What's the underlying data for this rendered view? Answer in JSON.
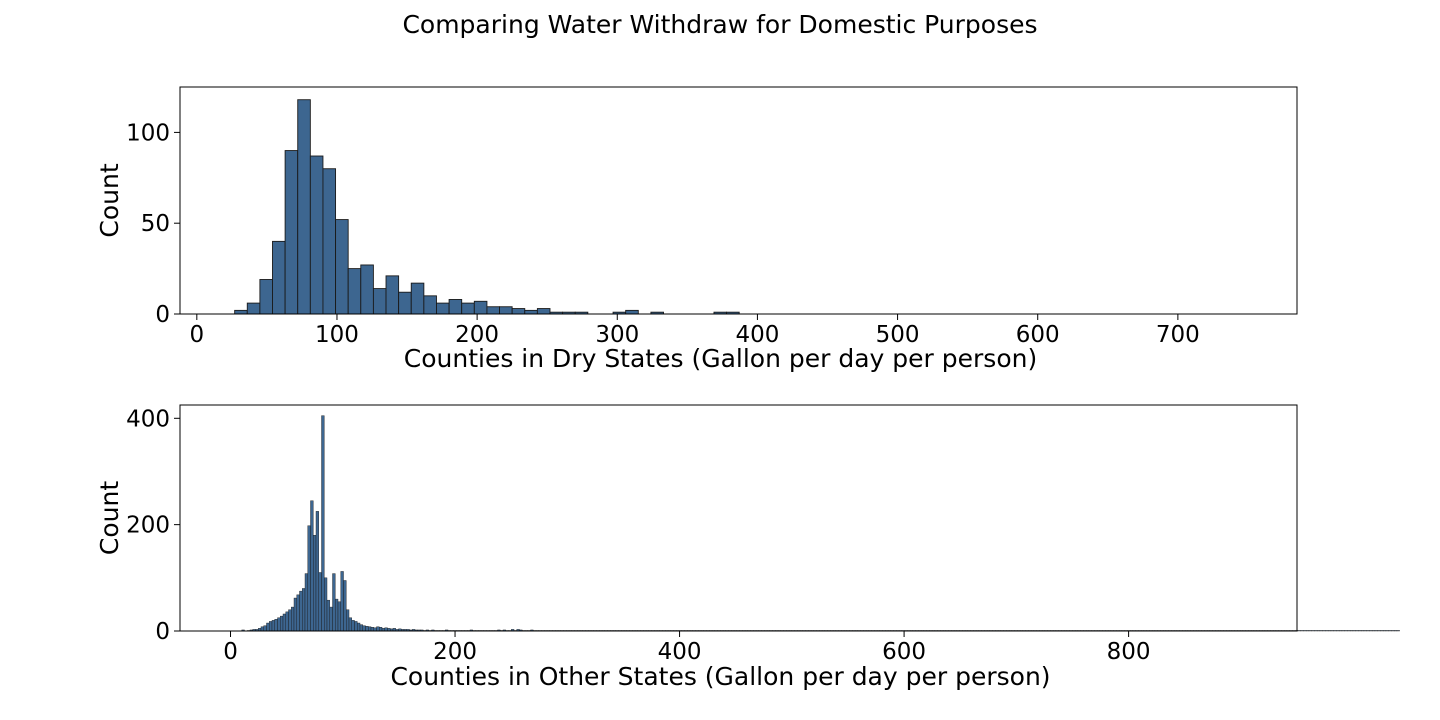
{
  "figure": {
    "title": "Comparing Water Withdraw for Domestic Purposes",
    "bar_color": "#3d6690",
    "edge_color": "#1a1a1a"
  },
  "chart_data": [
    {
      "type": "bar",
      "id": "dry",
      "xlabel": "Counties in Dry States (Gallon per day per person)",
      "ylabel": "Count",
      "xlim": [
        -12,
        785
      ],
      "ylim": [
        0,
        125
      ],
      "xticks": [
        0,
        100,
        200,
        300,
        400,
        500,
        600,
        700
      ],
      "yticks": [
        0,
        50,
        100
      ],
      "bin_width": 9,
      "bin_start": 27,
      "values": [
        2,
        6,
        19,
        40,
        90,
        118,
        87,
        80,
        52,
        25,
        27,
        14,
        21,
        12,
        17,
        10,
        6,
        8,
        6,
        7,
        4,
        4,
        3,
        2,
        3,
        1,
        1,
        1,
        0,
        0,
        1,
        2,
        0,
        1,
        0,
        0,
        0,
        0,
        1,
        1,
        0,
        0,
        0,
        0,
        0,
        0,
        0,
        0,
        0,
        0,
        0,
        0,
        0,
        0,
        0,
        0,
        0,
        0,
        0,
        0,
        0,
        0,
        0,
        0,
        0,
        0,
        0,
        0,
        0,
        0,
        0,
        0,
        0,
        0,
        0,
        0,
        0,
        0,
        0,
        0,
        0,
        0,
        0,
        0,
        0,
        0,
        0,
        0,
        0,
        0,
        0,
        0,
        0,
        0,
        0,
        0,
        0,
        0,
        0,
        0
      ]
    },
    {
      "type": "bar",
      "id": "other",
      "xlabel": "Counties in Other States  (Gallon per day per person)",
      "ylabel": "Count",
      "xlim": [
        -45,
        950
      ],
      "ylim": [
        0,
        425
      ],
      "xticks": [
        0,
        200,
        400,
        600,
        800
      ],
      "yticks": [
        0,
        200,
        400
      ],
      "bin_width": 2.45,
      "bin_start": 10,
      "values": [
        2,
        0,
        1,
        2,
        3,
        3,
        5,
        8,
        10,
        15,
        18,
        20,
        22,
        25,
        28,
        32,
        36,
        40,
        45,
        62,
        68,
        75,
        80,
        108,
        198,
        245,
        180,
        225,
        110,
        405,
        100,
        58,
        45,
        108,
        60,
        55,
        112,
        95,
        40,
        25,
        20,
        18,
        15,
        12,
        10,
        9,
        8,
        7,
        6,
        8,
        7,
        5,
        6,
        5,
        4,
        5,
        3,
        4,
        3,
        3,
        3,
        2,
        3,
        2,
        2,
        2,
        1,
        2,
        1,
        2,
        1,
        1,
        1,
        1,
        2,
        1,
        1,
        1,
        1,
        1,
        1,
        1,
        1,
        2,
        1,
        1,
        1,
        1,
        1,
        1,
        1,
        1,
        1,
        2,
        1,
        2,
        1,
        1,
        3,
        1,
        3,
        2,
        1,
        1,
        1,
        2,
        1,
        1,
        1,
        1,
        1,
        1,
        1,
        1,
        1,
        1,
        1,
        1,
        1,
        1,
        1,
        1,
        1,
        1,
        1,
        1,
        1,
        1,
        1,
        1,
        1,
        1,
        1,
        1,
        1,
        1,
        1,
        1,
        1,
        1,
        1,
        1,
        1,
        1,
        1,
        1,
        1,
        1,
        1,
        1,
        1,
        1,
        1,
        1,
        1,
        1,
        1,
        1,
        1,
        1,
        1,
        1,
        1,
        1,
        1,
        1,
        1,
        1,
        1,
        1,
        1,
        1,
        1,
        1,
        1,
        1,
        1,
        1,
        1,
        1,
        1,
        1,
        1,
        1,
        1,
        1,
        1,
        1,
        1,
        1,
        1,
        1,
        1,
        1,
        1,
        1,
        1,
        1,
        1,
        1,
        1,
        1,
        1,
        1,
        1,
        1,
        1,
        1,
        1,
        1,
        1,
        1,
        1,
        1,
        1,
        1,
        1,
        1,
        1,
        1,
        1,
        1,
        1,
        1,
        1,
        1,
        1,
        1,
        1,
        1,
        1,
        1,
        1,
        1,
        1,
        1,
        1,
        1,
        1,
        1,
        1,
        1,
        1,
        1,
        1,
        1,
        1,
        1,
        1,
        1,
        1,
        1,
        1,
        1,
        1,
        1,
        1,
        1,
        1,
        1,
        1,
        1,
        1,
        1,
        1,
        1,
        1,
        1,
        1,
        1,
        1,
        1,
        1,
        1,
        1,
        1,
        1,
        1,
        1,
        1,
        1,
        1,
        1,
        1,
        1,
        1,
        1,
        1,
        1,
        1,
        1,
        1,
        1,
        1,
        1,
        1,
        1,
        1,
        1,
        1,
        1,
        1,
        1,
        1,
        1,
        1,
        1,
        1,
        1,
        1,
        1,
        1,
        1,
        1,
        1,
        1,
        1,
        1,
        1,
        1,
        1,
        1,
        1,
        1,
        1,
        1,
        1,
        1,
        1,
        1,
        1,
        1,
        1,
        1,
        1,
        1,
        1,
        1,
        1,
        1,
        1,
        1,
        1,
        1,
        1,
        1,
        1,
        1,
        1,
        1,
        1,
        1,
        1,
        1,
        1,
        1,
        1,
        1,
        1,
        1,
        1,
        1,
        1,
        1,
        1,
        1,
        1,
        1,
        1,
        1,
        1,
        1,
        1,
        1,
        1,
        1,
        1,
        1,
        1,
        1,
        1,
        1,
        1,
        1,
        1,
        1,
        1,
        1,
        1,
        1,
        1,
        1,
        1,
        1,
        1,
        1,
        1,
        1,
        1,
        1,
        1,
        1,
        1,
        1,
        1,
        1,
        1,
        1,
        1,
        1,
        1,
        1,
        1,
        1,
        1,
        1,
        1,
        1,
        1,
        1,
        1
      ]
    }
  ]
}
